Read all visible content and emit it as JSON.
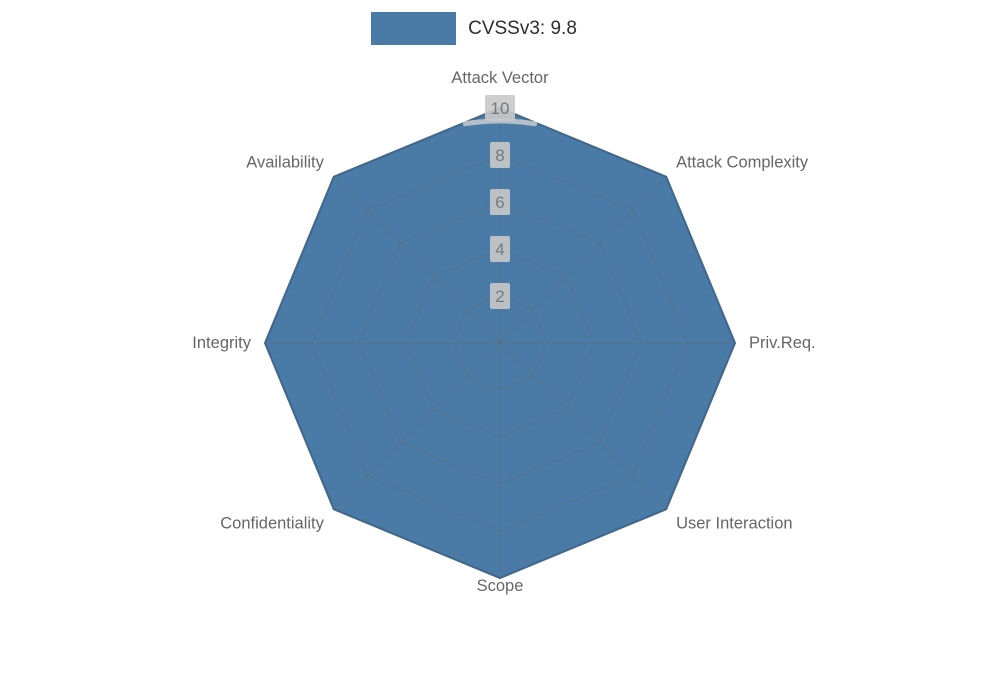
{
  "chart_data": {
    "type": "radar",
    "categories": [
      "Attack Vector",
      "Attack Complexity",
      "Priv.Req.",
      "User Interaction",
      "Scope",
      "Confidentiality",
      "Integrity",
      "Availability"
    ],
    "series": [
      {
        "name": "CVSSv3: 9.8",
        "color": "#4a7ba7",
        "values": [
          10,
          10,
          10,
          10,
          10,
          10,
          10,
          10
        ]
      }
    ],
    "r_ticks": [
      2,
      4,
      6,
      8,
      10
    ],
    "r_max": 10,
    "grid": true,
    "legend_position": "top-center",
    "colors": {
      "fill": "#4a7ba7",
      "edge": "#35648f",
      "grid": "#5c6c7a",
      "label": "#666666",
      "tick_text": "#787878",
      "tick_bg": "#c9c9c9",
      "legend_text": "#2e2e2e",
      "spine_arc": "#c2c7cc",
      "background": "#ffffff"
    }
  }
}
